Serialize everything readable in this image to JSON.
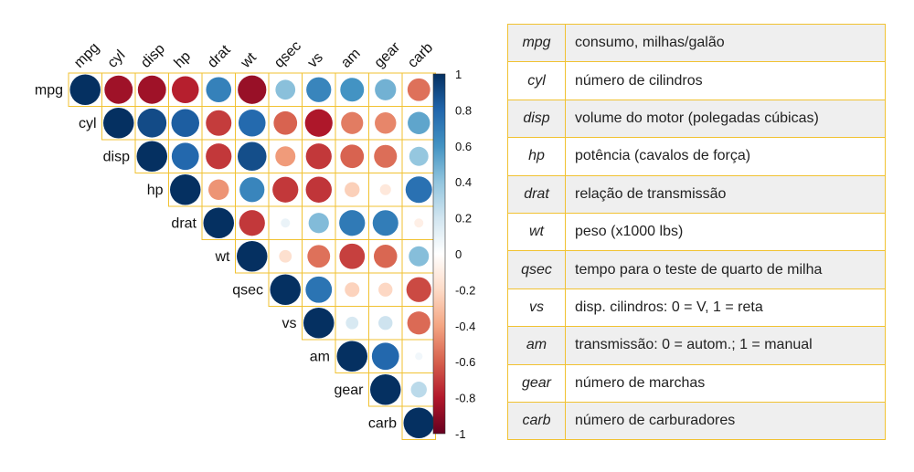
{
  "chart_data": {
    "type": "heatmap",
    "subtype": "correlation-upper-triangle-circles",
    "variables": [
      "mpg",
      "cyl",
      "disp",
      "hp",
      "drat",
      "wt",
      "qsec",
      "vs",
      "am",
      "gear",
      "carb"
    ],
    "matrix": [
      [
        1,
        -0.85,
        -0.85,
        -0.78,
        0.68,
        -0.87,
        0.42,
        0.66,
        0.6,
        0.48,
        -0.55
      ],
      [
        -0.85,
        1,
        0.9,
        0.83,
        -0.7,
        0.78,
        -0.59,
        -0.81,
        -0.52,
        -0.49,
        0.53
      ],
      [
        -0.85,
        0.9,
        1,
        0.79,
        -0.71,
        0.89,
        -0.43,
        -0.71,
        -0.59,
        -0.56,
        0.39
      ],
      [
        -0.78,
        0.83,
        0.79,
        1,
        -0.45,
        0.66,
        -0.71,
        -0.72,
        -0.24,
        -0.13,
        0.75
      ],
      [
        0.68,
        -0.7,
        -0.71,
        -0.45,
        1,
        -0.71,
        0.09,
        0.44,
        0.71,
        0.7,
        -0.09
      ],
      [
        -0.87,
        0.78,
        0.89,
        0.66,
        -0.71,
        1,
        -0.17,
        -0.55,
        -0.69,
        -0.58,
        0.43
      ],
      [
        0.42,
        -0.59,
        -0.43,
        -0.71,
        0.09,
        -0.17,
        1,
        0.74,
        -0.23,
        -0.21,
        -0.66
      ],
      [
        0.66,
        -0.81,
        -0.71,
        -0.72,
        0.44,
        -0.55,
        0.74,
        1,
        0.17,
        0.21,
        -0.57
      ],
      [
        0.6,
        -0.52,
        -0.59,
        -0.24,
        0.71,
        -0.69,
        -0.23,
        0.17,
        1,
        0.79,
        0.06
      ],
      [
        0.48,
        -0.49,
        -0.56,
        -0.13,
        0.7,
        -0.58,
        -0.21,
        0.21,
        0.79,
        1,
        0.27
      ],
      [
        -0.55,
        0.53,
        0.39,
        0.75,
        -0.09,
        0.43,
        -0.66,
        -0.57,
        0.06,
        0.27,
        1
      ]
    ],
    "colorbar": {
      "ticks": [
        "1",
        "0.8",
        "0.6",
        "0.4",
        "0.2",
        "0",
        "-0.2",
        "-0.4",
        "-0.6",
        "-0.8",
        "-1"
      ],
      "range": [
        -1,
        1
      ],
      "colors": [
        "#67001F",
        "#B2182B",
        "#D6604D",
        "#F4A582",
        "#FDDBC7",
        "#FFFFFF",
        "#D1E5F0",
        "#92C5DE",
        "#4393C3",
        "#2166AC",
        "#053061"
      ]
    },
    "grid_color": "#f1c232"
  },
  "legend": [
    {
      "var": "mpg",
      "desc": "consumo, milhas/galão"
    },
    {
      "var": "cyl",
      "desc": "número de cilindros"
    },
    {
      "var": "disp",
      "desc": "volume do motor (polegadas cúbicas)"
    },
    {
      "var": "hp",
      "desc": "potência (cavalos de força)"
    },
    {
      "var": "drat",
      "desc": "relação de transmissão"
    },
    {
      "var": "wt",
      "desc": "peso (x1000 lbs)"
    },
    {
      "var": "qsec",
      "desc": "tempo para o teste de quarto de milha"
    },
    {
      "var": "vs",
      "desc": "disp. cilindros: 0 = V, 1 = reta"
    },
    {
      "var": "am",
      "desc": "transmissão: 0 = autom.; 1 = manual"
    },
    {
      "var": "gear",
      "desc": "número de marchas"
    },
    {
      "var": "carb",
      "desc": "número de carburadores"
    }
  ]
}
